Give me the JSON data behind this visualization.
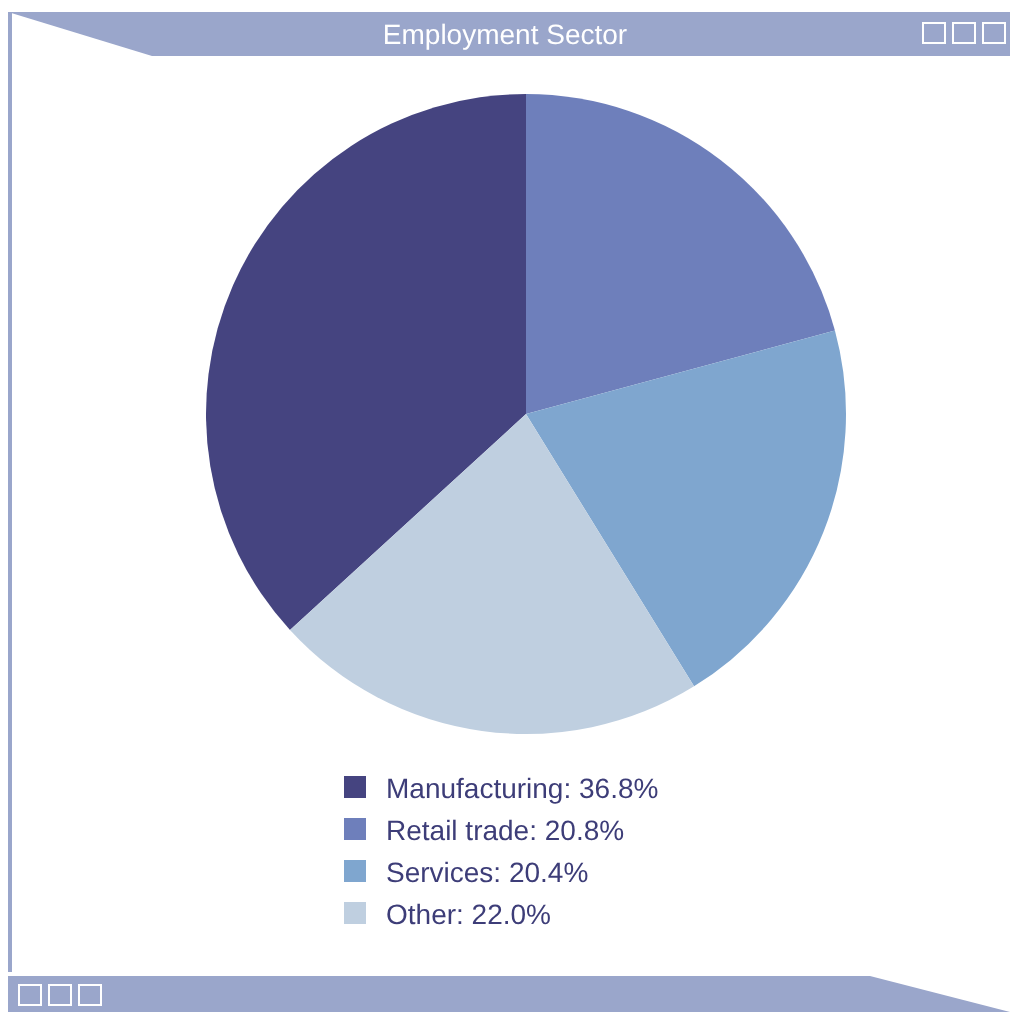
{
  "chart_data": {
    "type": "pie",
    "title": "Employment Sector",
    "categories": [
      "Manufacturing",
      "Retail trade",
      "Services",
      "Other"
    ],
    "values": [
      36.8,
      20.8,
      20.4,
      22.0
    ],
    "value_labels": [
      "36.8%",
      "20.8%",
      "20.4%",
      "22.0%"
    ],
    "colors": [
      "#454480",
      "#6e7fbb",
      "#7fa6cf",
      "#bfcfe0"
    ],
    "legend": "bottom"
  }
}
